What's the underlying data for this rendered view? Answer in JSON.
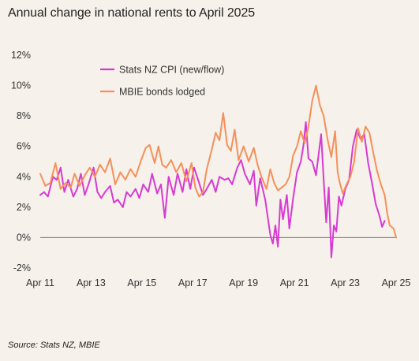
{
  "title": "Annual change in national rents to April 2025",
  "source": "Source: Stats NZ, MBIE",
  "chart_data": {
    "type": "line",
    "ylim": [
      -2,
      12
    ],
    "xlim": [
      2011.25,
      2025.25
    ],
    "y_ticks": [
      "12%",
      "10%",
      "8%",
      "6%",
      "4%",
      "2%",
      "0%",
      "-2%"
    ],
    "y_tick_values": [
      12,
      10,
      8,
      6,
      4,
      2,
      0,
      -2
    ],
    "x_ticks": [
      "Apr 11",
      "Apr 13",
      "Apr 15",
      "Apr 17",
      "Apr 19",
      "Apr 21",
      "Apr 23",
      "Apr 25"
    ],
    "x_tick_values": [
      2011.25,
      2013.25,
      2015.25,
      2017.25,
      2019.25,
      2021.25,
      2023.25,
      2025.25
    ],
    "grid": false,
    "legend": "top-left",
    "zero_line": true,
    "series": [
      {
        "name": "Stats NZ CPI (new/flow)",
        "color": "#d63ad3",
        "points": [
          [
            2011.25,
            2.8
          ],
          [
            2011.4,
            3.0
          ],
          [
            2011.55,
            2.7
          ],
          [
            2011.75,
            4.0
          ],
          [
            2011.9,
            3.8
          ],
          [
            2012.05,
            4.6
          ],
          [
            2012.2,
            3.0
          ],
          [
            2012.35,
            3.8
          ],
          [
            2012.55,
            2.7
          ],
          [
            2012.7,
            3.2
          ],
          [
            2012.85,
            4.2
          ],
          [
            2013.0,
            2.8
          ],
          [
            2013.15,
            3.5
          ],
          [
            2013.35,
            4.6
          ],
          [
            2013.5,
            3.0
          ],
          [
            2013.65,
            2.6
          ],
          [
            2013.8,
            3.0
          ],
          [
            2014.0,
            3.4
          ],
          [
            2014.15,
            2.3
          ],
          [
            2014.3,
            2.5
          ],
          [
            2014.5,
            2.0
          ],
          [
            2014.65,
            3.0
          ],
          [
            2014.8,
            2.7
          ],
          [
            2015.0,
            3.2
          ],
          [
            2015.15,
            2.6
          ],
          [
            2015.3,
            3.5
          ],
          [
            2015.5,
            3.0
          ],
          [
            2015.65,
            4.2
          ],
          [
            2015.85,
            2.9
          ],
          [
            2016.0,
            3.5
          ],
          [
            2016.15,
            1.3
          ],
          [
            2016.3,
            4.0
          ],
          [
            2016.5,
            2.8
          ],
          [
            2016.65,
            4.2
          ],
          [
            2016.85,
            3.0
          ],
          [
            2017.0,
            4.5
          ],
          [
            2017.15,
            3.2
          ],
          [
            2017.3,
            4.6
          ],
          [
            2017.5,
            3.6
          ],
          [
            2017.65,
            2.8
          ],
          [
            2017.8,
            3.2
          ],
          [
            2018.0,
            3.8
          ],
          [
            2018.15,
            3.0
          ],
          [
            2018.3,
            4.0
          ],
          [
            2018.5,
            3.8
          ],
          [
            2018.65,
            3.9
          ],
          [
            2018.8,
            3.5
          ],
          [
            2019.0,
            4.6
          ],
          [
            2019.15,
            5.1
          ],
          [
            2019.3,
            4.2
          ],
          [
            2019.5,
            3.5
          ],
          [
            2019.65,
            4.4
          ],
          [
            2019.75,
            2.1
          ],
          [
            2019.9,
            3.9
          ],
          [
            2020.1,
            2.5
          ],
          [
            2020.3,
            0.2
          ],
          [
            2020.4,
            -0.4
          ],
          [
            2020.5,
            0.8
          ],
          [
            2020.6,
            -0.6
          ],
          [
            2020.7,
            2.5
          ],
          [
            2020.8,
            1.2
          ],
          [
            2020.95,
            2.8
          ],
          [
            2021.05,
            0.6
          ],
          [
            2021.2,
            2.6
          ],
          [
            2021.35,
            4.3
          ],
          [
            2021.5,
            5.0
          ],
          [
            2021.6,
            6.0
          ],
          [
            2021.7,
            7.6
          ],
          [
            2021.8,
            5.2
          ],
          [
            2021.95,
            5.0
          ],
          [
            2022.1,
            4.1
          ],
          [
            2022.3,
            6.8
          ],
          [
            2022.4,
            3.8
          ],
          [
            2022.5,
            1.0
          ],
          [
            2022.6,
            3.3
          ],
          [
            2022.7,
            -1.3
          ],
          [
            2022.8,
            0.8
          ],
          [
            2022.9,
            0.4
          ],
          [
            2023.0,
            2.7
          ],
          [
            2023.1,
            2.1
          ],
          [
            2023.25,
            3.2
          ],
          [
            2023.4,
            3.8
          ],
          [
            2023.55,
            6.0
          ],
          [
            2023.7,
            7.1
          ],
          [
            2023.85,
            6.5
          ],
          [
            2024.0,
            6.8
          ],
          [
            2024.15,
            4.9
          ],
          [
            2024.3,
            3.6
          ],
          [
            2024.45,
            2.2
          ],
          [
            2024.6,
            1.4
          ],
          [
            2024.7,
            0.7
          ],
          [
            2024.8,
            1.1
          ]
        ]
      },
      {
        "name": "MBIE bonds lodged",
        "color": "#f5905a",
        "points": [
          [
            2011.25,
            4.2
          ],
          [
            2011.45,
            3.4
          ],
          [
            2011.65,
            3.6
          ],
          [
            2011.85,
            4.9
          ],
          [
            2012.05,
            3.2
          ],
          [
            2012.25,
            3.6
          ],
          [
            2012.45,
            3.3
          ],
          [
            2012.6,
            4.2
          ],
          [
            2012.8,
            3.4
          ],
          [
            2013.0,
            4.1
          ],
          [
            2013.2,
            4.6
          ],
          [
            2013.4,
            4.0
          ],
          [
            2013.6,
            4.8
          ],
          [
            2013.8,
            4.3
          ],
          [
            2014.0,
            5.2
          ],
          [
            2014.2,
            3.5
          ],
          [
            2014.4,
            4.3
          ],
          [
            2014.6,
            3.8
          ],
          [
            2014.8,
            4.5
          ],
          [
            2015.0,
            4.0
          ],
          [
            2015.2,
            5.0
          ],
          [
            2015.4,
            5.9
          ],
          [
            2015.55,
            6.1
          ],
          [
            2015.75,
            4.9
          ],
          [
            2015.9,
            6.0
          ],
          [
            2016.05,
            4.8
          ],
          [
            2016.2,
            4.6
          ],
          [
            2016.4,
            5.1
          ],
          [
            2016.6,
            4.3
          ],
          [
            2016.8,
            4.9
          ],
          [
            2017.0,
            3.7
          ],
          [
            2017.2,
            4.9
          ],
          [
            2017.35,
            3.3
          ],
          [
            2017.5,
            2.7
          ],
          [
            2017.65,
            3.0
          ],
          [
            2017.8,
            4.5
          ],
          [
            2018.0,
            5.8
          ],
          [
            2018.15,
            6.9
          ],
          [
            2018.3,
            6.4
          ],
          [
            2018.45,
            8.2
          ],
          [
            2018.6,
            6.1
          ],
          [
            2018.75,
            5.7
          ],
          [
            2018.9,
            7.1
          ],
          [
            2019.05,
            5.1
          ],
          [
            2019.25,
            6.0
          ],
          [
            2019.45,
            5.0
          ],
          [
            2019.65,
            5.9
          ],
          [
            2019.8,
            4.8
          ],
          [
            2019.95,
            4.0
          ],
          [
            2020.15,
            3.2
          ],
          [
            2020.3,
            4.5
          ],
          [
            2020.45,
            3.6
          ],
          [
            2020.6,
            3.1
          ],
          [
            2020.75,
            3.3
          ],
          [
            2020.9,
            3.5
          ],
          [
            2021.05,
            4.0
          ],
          [
            2021.2,
            5.4
          ],
          [
            2021.35,
            6.0
          ],
          [
            2021.5,
            7.0
          ],
          [
            2021.65,
            6.2
          ],
          [
            2021.8,
            7.3
          ],
          [
            2021.95,
            9.0
          ],
          [
            2022.1,
            10.0
          ],
          [
            2022.25,
            8.7
          ],
          [
            2022.4,
            8.0
          ],
          [
            2022.55,
            6.5
          ],
          [
            2022.7,
            5.3
          ],
          [
            2022.85,
            7.0
          ],
          [
            2022.95,
            4.3
          ],
          [
            2023.05,
            3.5
          ],
          [
            2023.15,
            2.9
          ],
          [
            2023.3,
            3.5
          ],
          [
            2023.45,
            4.0
          ],
          [
            2023.6,
            5.0
          ],
          [
            2023.75,
            7.2
          ],
          [
            2023.9,
            6.3
          ],
          [
            2024.05,
            7.3
          ],
          [
            2024.2,
            6.9
          ],
          [
            2024.35,
            5.6
          ],
          [
            2024.5,
            4.4
          ],
          [
            2024.65,
            3.5
          ],
          [
            2024.8,
            2.8
          ],
          [
            2024.9,
            1.6
          ],
          [
            2025.0,
            0.8
          ],
          [
            2025.15,
            0.6
          ],
          [
            2025.25,
            0.0
          ]
        ]
      }
    ]
  }
}
